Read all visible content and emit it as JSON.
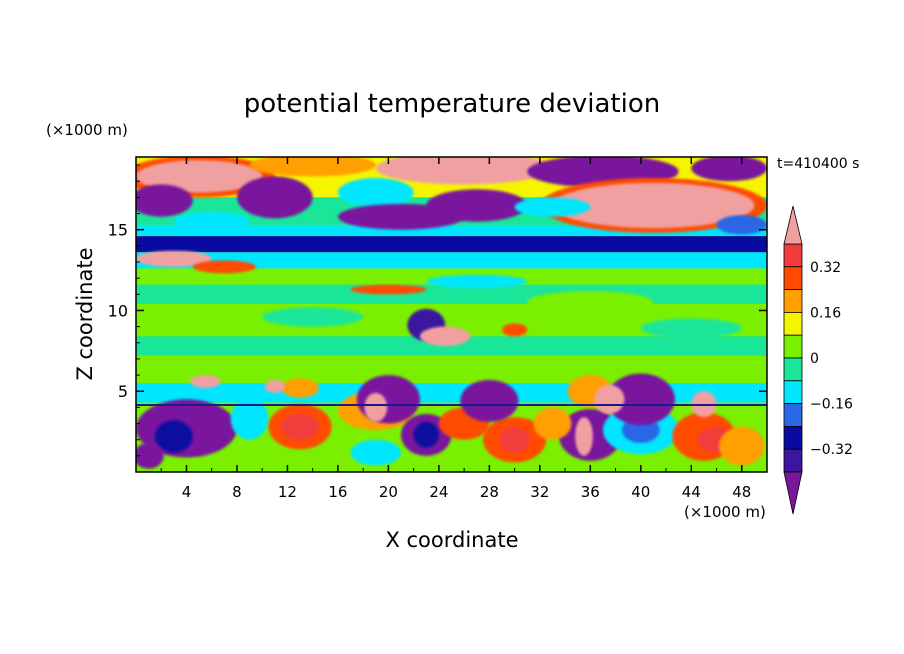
{
  "chart_data": {
    "type": "heatmap",
    "title": "potential temperature deviation",
    "xlabel": "X coordinate",
    "ylabel": "Z coordinate",
    "x_unit": "(×1000 m)",
    "z_unit": "(×1000 m)",
    "time_label": "t=410400 s",
    "xlim": [
      0,
      50
    ],
    "ylim": [
      0,
      19.5
    ],
    "x_ticks": [
      "4",
      "8",
      "12",
      "16",
      "20",
      "24",
      "28",
      "32",
      "36",
      "40",
      "44",
      "48"
    ],
    "y_ticks": [
      "5",
      "10",
      "15"
    ],
    "colorbar": {
      "levels": [
        -0.4,
        -0.32,
        -0.24,
        -0.16,
        -0.08,
        0,
        0.08,
        0.16,
        0.24,
        0.32,
        0.4
      ],
      "labels": [
        "0.32",
        "0.16",
        "0",
        "−0.16",
        "−0.32"
      ],
      "colors": [
        "#7a169e",
        "#3c169e",
        "#0a0aa0",
        "#2a66e6",
        "#00e6ff",
        "#1ae69a",
        "#7af000",
        "#f5f500",
        "#ff9f00",
        "#ff4b00",
        "#f23c3c",
        "#f0a0a0"
      ]
    }
  }
}
